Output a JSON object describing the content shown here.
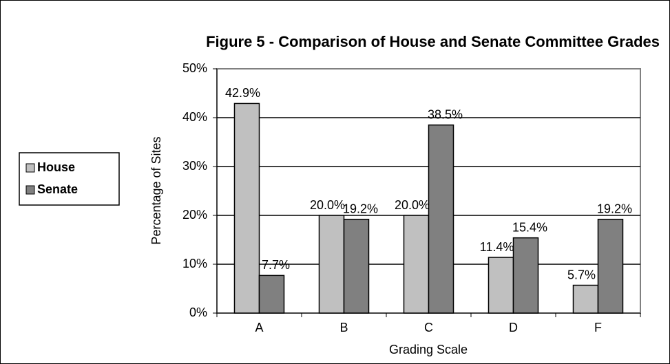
{
  "chart_data": {
    "type": "bar",
    "title": "Figure 5 - Comparison of House and Senate Committee Grades",
    "xlabel": "Grading Scale",
    "ylabel": "Percentage of Sites",
    "categories": [
      "A",
      "B",
      "C",
      "D",
      "F"
    ],
    "series": [
      {
        "name": "House",
        "color": "#c0c0c0",
        "values": [
          42.9,
          20.0,
          20.0,
          11.4,
          5.7
        ],
        "value_labels": [
          "42.9%",
          "20.0%",
          "20.0%",
          "11.4%",
          "5.7%"
        ]
      },
      {
        "name": "Senate",
        "color": "#808080",
        "values": [
          7.7,
          19.2,
          38.5,
          15.4,
          19.2
        ],
        "value_labels": [
          "7.7%",
          "19.2%",
          "38.5%",
          "15.4%",
          "19.2%"
        ]
      }
    ],
    "ylim": [
      0,
      50
    ],
    "yticks": [
      {
        "value": 0,
        "label": "0%"
      },
      {
        "value": 10,
        "label": "10%"
      },
      {
        "value": 20,
        "label": "20%"
      },
      {
        "value": 30,
        "label": "30%"
      },
      {
        "value": 40,
        "label": "40%"
      },
      {
        "value": 50,
        "label": "50%"
      }
    ],
    "grid": true,
    "legend": "left"
  }
}
